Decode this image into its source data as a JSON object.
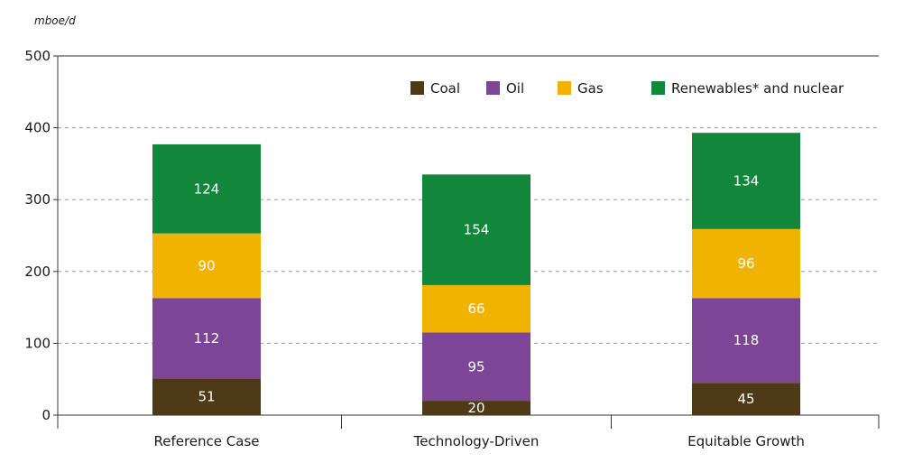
{
  "chart_data": {
    "type": "bar",
    "stacked": true,
    "unit_label": "mboe/d",
    "title": "",
    "xlabel": "",
    "ylabel": "",
    "categories": [
      "Reference Case",
      "Technology-Driven",
      "Equitable Growth"
    ],
    "ylim": [
      0,
      500
    ],
    "yticks": [
      0,
      100,
      200,
      300,
      400,
      500
    ],
    "grid": "horizontal-dashed",
    "legend_position": "top-right",
    "series": [
      {
        "name": "Coal",
        "color": "#4e3a17",
        "values": [
          51,
          20,
          45
        ]
      },
      {
        "name": "Oil",
        "color": "#7d4596",
        "values": [
          112,
          95,
          118
        ]
      },
      {
        "name": "Gas",
        "color": "#f0b400",
        "values": [
          90,
          66,
          96
        ]
      },
      {
        "name": "Renewables* and nuclear",
        "color": "#12873c",
        "values": [
          124,
          154,
          134
        ]
      }
    ]
  }
}
